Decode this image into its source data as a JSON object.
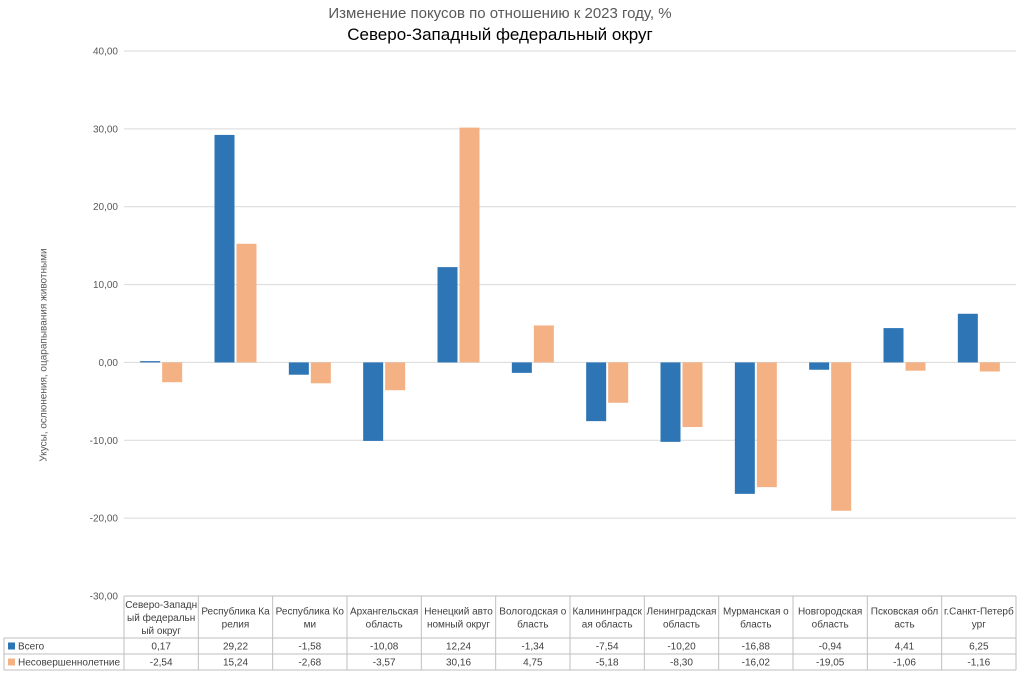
{
  "chart_data": {
    "type": "bar",
    "title": "Изменение покусов по отношению к 2023 году, %",
    "subtitle": "Северо-Западный федеральный округ",
    "ylabel": "Укусы, ослюнения, оцарапывания животными",
    "ylim": [
      -30,
      40
    ],
    "yticks": [
      "40,00",
      "30,00",
      "20,00",
      "10,00",
      "0,00",
      "-10,00",
      "-20,00",
      "-30,00"
    ],
    "grid": true,
    "legend": "table-bottom",
    "categories": [
      [
        "Северо-Западн",
        "ый федеральн",
        "ый округ"
      ],
      [
        "Республика Ка",
        "релия"
      ],
      [
        "Республика Ко",
        "ми"
      ],
      [
        "Архангельская",
        "область"
      ],
      [
        "Ненецкий авто",
        "номный округ"
      ],
      [
        "Вологодская о",
        "бласть"
      ],
      [
        "Калининградск",
        "ая область"
      ],
      [
        "Ленинградская",
        "область"
      ],
      [
        "Мурманская о",
        "бласть"
      ],
      [
        "Новгородская",
        "область"
      ],
      [
        "Псковская обл",
        "асть"
      ],
      [
        "г.Санкт-Петерб",
        "ург"
      ]
    ],
    "series": [
      {
        "name": "Всего",
        "color": "#2E75B6",
        "values": [
          0.17,
          29.22,
          -1.58,
          -10.08,
          12.24,
          -1.34,
          -7.54,
          -10.2,
          -16.88,
          -0.94,
          4.41,
          6.25
        ],
        "labels": [
          "0,17",
          "29,22",
          "-1,58",
          "-10,08",
          "12,24",
          "-1,34",
          "-7,54",
          "-10,20",
          "-16,88",
          "-0,94",
          "4,41",
          "6,25"
        ]
      },
      {
        "name": "Несовершеннолетние",
        "color": "#F4B183",
        "values": [
          -2.54,
          15.24,
          -2.68,
          -3.57,
          30.16,
          4.75,
          -5.18,
          -8.3,
          -16.02,
          -19.05,
          -1.06,
          -1.16
        ],
        "labels": [
          "-2,54",
          "15,24",
          "-2,68",
          "-3,57",
          "30,16",
          "4,75",
          "-5,18",
          "-8,30",
          "-16,02",
          "-19,05",
          "-1,06",
          "-1,16"
        ]
      }
    ]
  }
}
